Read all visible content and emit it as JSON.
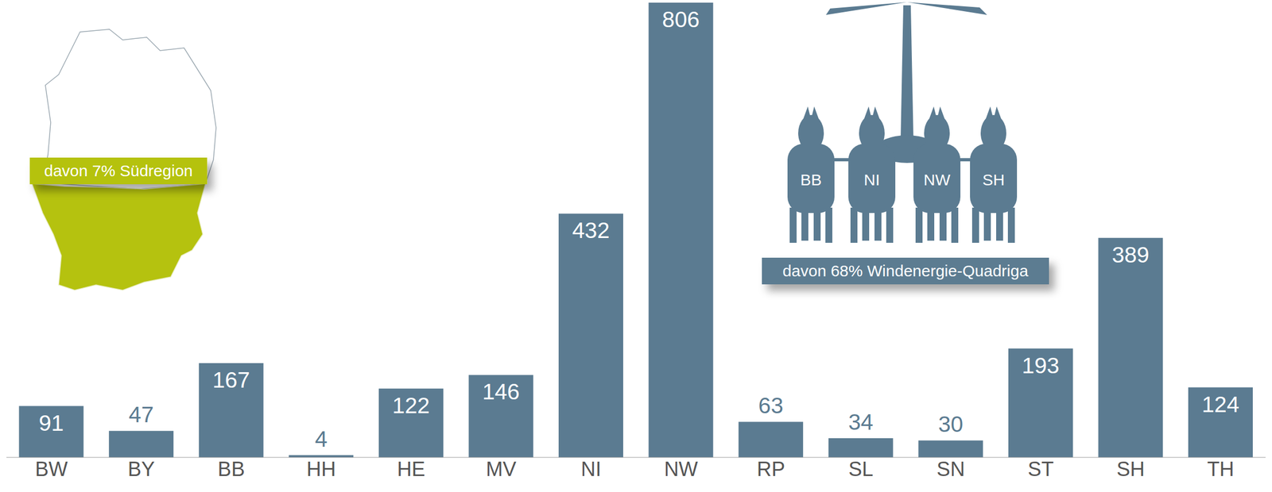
{
  "chart_data": {
    "type": "bar",
    "categories": [
      "BW",
      "BY",
      "BB",
      "HH",
      "HE",
      "MV",
      "NI",
      "NW",
      "RP",
      "SL",
      "SN",
      "ST",
      "SH",
      "TH"
    ],
    "values": [
      91,
      47,
      167,
      4,
      122,
      146,
      432,
      806,
      63,
      34,
      30,
      193,
      389,
      124
    ],
    "color": "#5b7b91",
    "ylim": [
      0,
      806
    ],
    "grid": false,
    "data_labels": true,
    "tick_labels": "x",
    "annotations": [
      "davon 7% Südregion",
      "davon 68% Windenergie-Quadriga"
    ],
    "quadriga_labels": [
      "BB",
      "NI",
      "NW",
      "SH"
    ]
  }
}
